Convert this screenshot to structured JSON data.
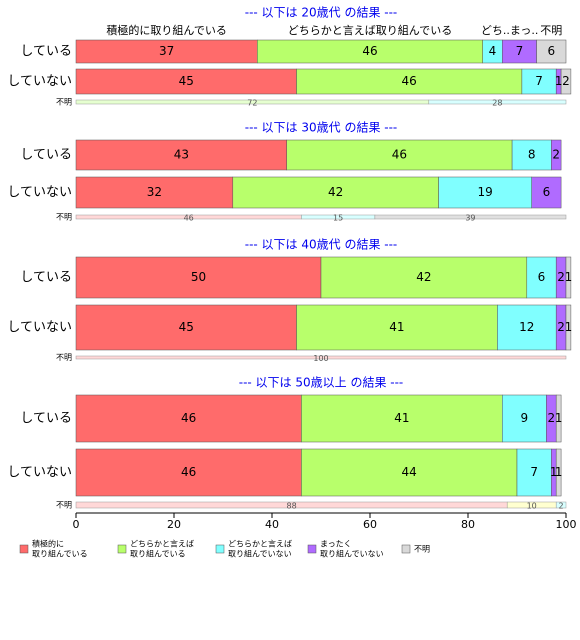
{
  "chart_data": {
    "type": "bar",
    "orientation": "horizontal",
    "stacked": true,
    "series": [
      {
        "name": [
          "積極的に",
          "取り組んでいる"
        ],
        "color": "#ff6b6b"
      },
      {
        "name": [
          "どちらかと言えば",
          "取り組んでいる"
        ],
        "color": "#b8ff6b"
      },
      {
        "name": [
          "どちらかと言えば",
          "取り組んでいない"
        ],
        "color": "#80ffff"
      },
      {
        "name": [
          "まったく",
          "取り組んでいない"
        ],
        "color": "#b06bff"
      },
      {
        "name": [
          "不明"
        ],
        "color": "#d9d9d9"
      }
    ],
    "xlim": [
      0,
      100
    ],
    "xticks": [
      0,
      20,
      40,
      60,
      80,
      100
    ],
    "panels": [
      {
        "title": "--- 以下は 20歳代 の結果 ---",
        "headers": [
          "積極的に取り組んでいる",
          "どちらかと言えば取り組んでいる",
          "どち..まっ..",
          "不明"
        ],
        "rows": [
          {
            "label": "している",
            "values": [
              37,
              46,
              4,
              7,
              6
            ]
          },
          {
            "label": "していない",
            "values": [
              45,
              46,
              7,
              1,
              2
            ]
          }
        ],
        "unknown": {
          "label": "不明",
          "values": [
            72,
            28
          ],
          "colors": [
            "#e6ffd0",
            "#d8ffff"
          ]
        }
      },
      {
        "title": "--- 以下は 30歳代 の結果 ---",
        "rows": [
          {
            "label": "している",
            "values": [
              43,
              46,
              8,
              2,
              null
            ]
          },
          {
            "label": "していない",
            "values": [
              32,
              42,
              19,
              6,
              null
            ]
          }
        ],
        "unknown": {
          "label": "不明",
          "values": [
            46,
            15,
            39
          ],
          "colors": [
            "#ffd8d8",
            "#d8ffff",
            "#e0e0e0"
          ]
        }
      },
      {
        "title": "--- 以下は 40歳代 の結果 ---",
        "rows": [
          {
            "label": "している",
            "values": [
              50,
              42,
              6,
              2,
              1
            ]
          },
          {
            "label": "していない",
            "values": [
              45,
              41,
              12,
              2,
              1
            ]
          }
        ],
        "unknown": {
          "label": "不明",
          "values": [
            100
          ],
          "colors": [
            "#ffd8d8"
          ]
        }
      },
      {
        "title": "--- 以下は 50歳以上 の結果 ---",
        "rows": [
          {
            "label": "している",
            "values": [
              46,
              41,
              9,
              2,
              1
            ]
          },
          {
            "label": "していない",
            "values": [
              46,
              44,
              7,
              1,
              1
            ]
          }
        ],
        "unknown": {
          "label": "不明",
          "values": [
            88,
            10,
            2
          ],
          "colors": [
            "#ffd8d8",
            "#ffffd0",
            "#d8ffff"
          ]
        }
      }
    ]
  }
}
